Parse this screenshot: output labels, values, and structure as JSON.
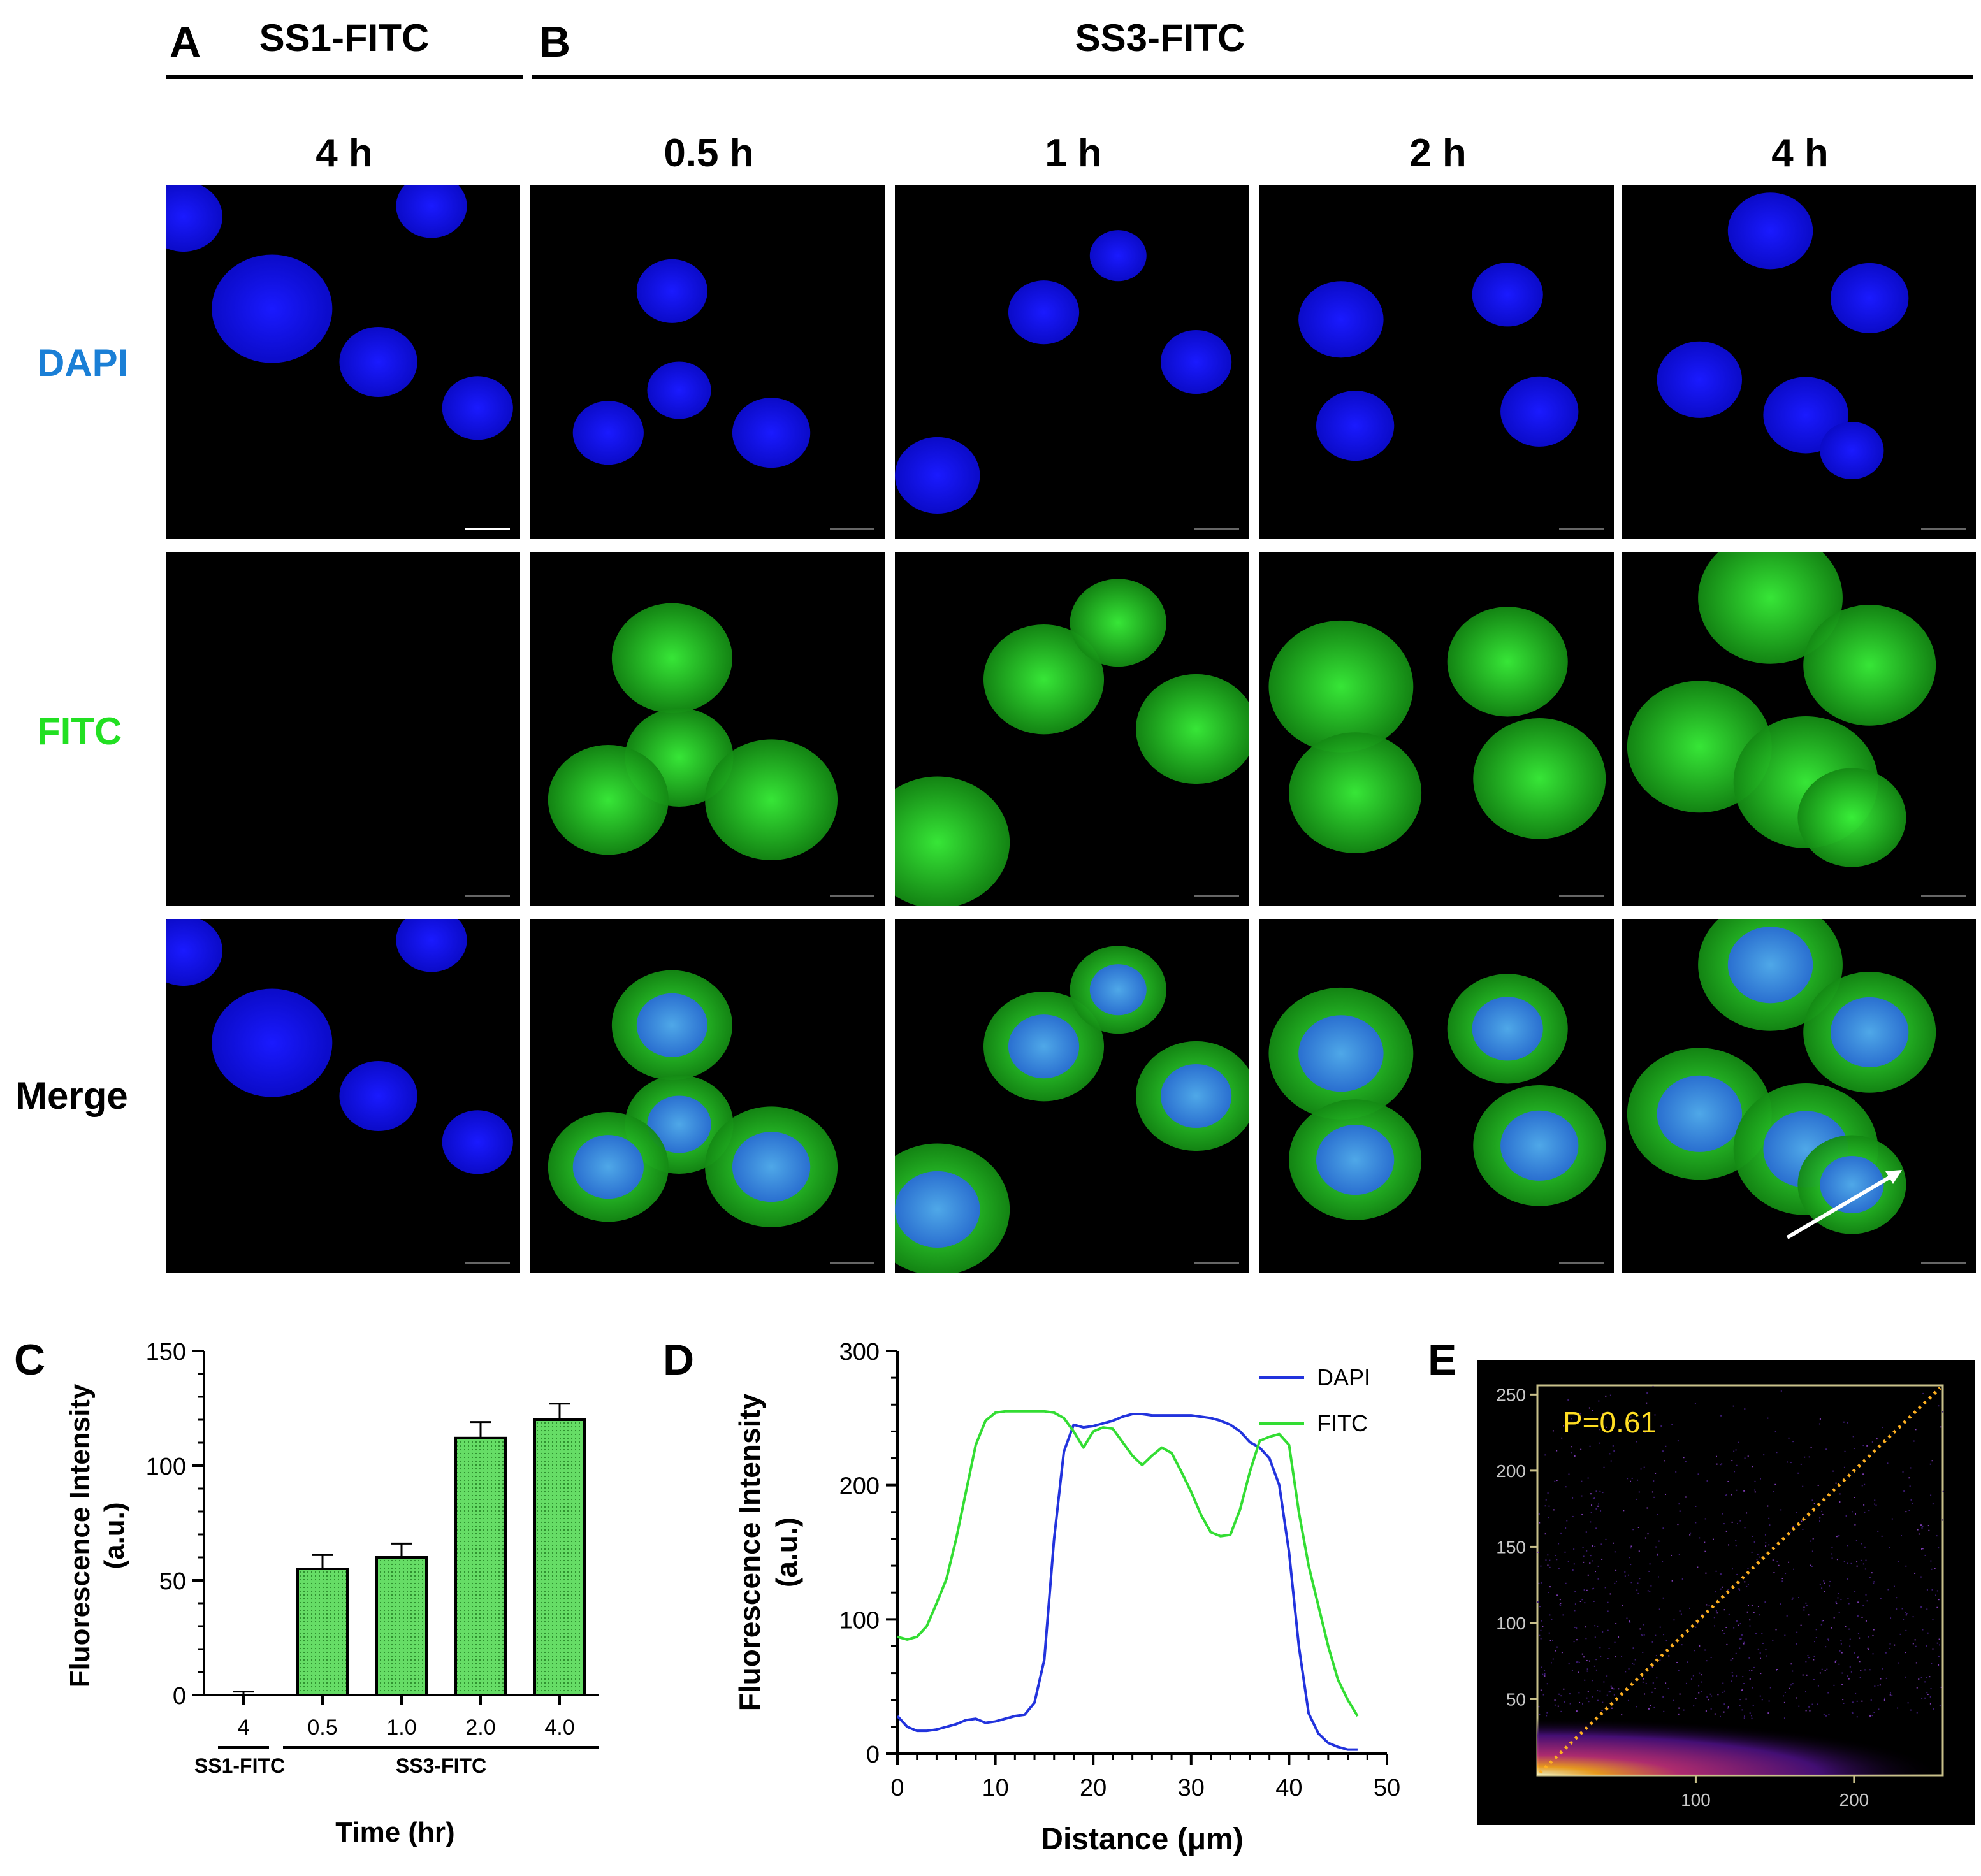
{
  "panels": {
    "A": {
      "letter": "A",
      "title": "SS1-FITC",
      "columns": [
        "4 h"
      ]
    },
    "B": {
      "letter": "B",
      "title": "SS3-FITC",
      "columns": [
        "0.5 h",
        "1 h",
        "2 h",
        "4 h"
      ]
    },
    "C": {
      "letter": "C"
    },
    "D": {
      "letter": "D"
    },
    "E": {
      "letter": "E"
    }
  },
  "rows": [
    {
      "label": "DAPI",
      "color": "#1a7fd6"
    },
    {
      "label": "FITC",
      "color": "#22e022"
    },
    {
      "label": "Merge",
      "color": "#000000"
    }
  ],
  "chart_data": [
    {
      "id": "C",
      "type": "bar",
      "categories": [
        "4",
        "0.5",
        "1.0",
        "2.0",
        "4.0"
      ],
      "values": [
        0,
        55,
        60,
        112,
        120
      ],
      "errors": [
        1.5,
        6,
        6,
        7,
        7
      ],
      "ylabel": "Fluorescence Intensity\n(a.u.)",
      "xlabel": "Time (hr)",
      "ylim": [
        0,
        150
      ],
      "yticks": [
        0,
        50,
        100,
        150
      ],
      "groups": [
        {
          "label": "SS1-FITC",
          "from": 0,
          "to": 0
        },
        {
          "label": "SS3-FITC",
          "from": 1,
          "to": 4
        }
      ],
      "bar_color": "#66dd66",
      "grid": false
    },
    {
      "id": "D",
      "type": "line",
      "xlabel": "Distance (μm)",
      "ylabel": "Fluorescence Intensity\n(a.u.)",
      "xlim": [
        0,
        50
      ],
      "ylim": [
        0,
        300
      ],
      "xticks": [
        0,
        10,
        20,
        30,
        40,
        50
      ],
      "yticks": [
        0,
        100,
        200,
        300
      ],
      "legend": "top-right",
      "grid": false,
      "series": [
        {
          "name": "DAPI",
          "color": "#2233dd",
          "x": [
            0,
            1,
            2,
            3,
            4,
            5,
            6,
            7,
            8,
            9,
            10,
            11,
            12,
            13,
            14,
            15,
            16,
            17,
            18,
            19,
            20,
            21,
            22,
            23,
            24,
            25,
            26,
            27,
            28,
            29,
            30,
            31,
            32,
            33,
            34,
            35,
            36,
            37,
            38,
            39,
            40,
            41,
            42,
            43,
            44,
            45,
            46,
            47
          ],
          "values": [
            28,
            20,
            17,
            17,
            18,
            20,
            22,
            25,
            26,
            23,
            24,
            26,
            28,
            29,
            38,
            70,
            160,
            225,
            245,
            243,
            244,
            246,
            248,
            251,
            253,
            253,
            252,
            252,
            252,
            252,
            252,
            251,
            250,
            248,
            245,
            240,
            232,
            228,
            220,
            200,
            150,
            80,
            30,
            15,
            8,
            5,
            3,
            3
          ]
        },
        {
          "name": "FITC",
          "color": "#33dd33",
          "x": [
            0,
            1,
            2,
            3,
            4,
            5,
            6,
            7,
            8,
            9,
            10,
            11,
            12,
            13,
            14,
            15,
            16,
            17,
            18,
            19,
            20,
            21,
            22,
            23,
            24,
            25,
            26,
            27,
            28,
            29,
            30,
            31,
            32,
            33,
            34,
            35,
            36,
            37,
            38,
            39,
            40,
            41,
            42,
            43,
            44,
            45,
            46,
            47
          ],
          "values": [
            87,
            85,
            87,
            95,
            112,
            130,
            160,
            195,
            230,
            248,
            254,
            255,
            255,
            255,
            255,
            255,
            254,
            250,
            240,
            228,
            240,
            243,
            242,
            232,
            222,
            215,
            222,
            228,
            224,
            210,
            195,
            178,
            165,
            162,
            163,
            182,
            210,
            233,
            236,
            238,
            230,
            180,
            140,
            110,
            80,
            55,
            40,
            28
          ]
        }
      ]
    }
  ],
  "panel_e": {
    "annotation": "P=0.61",
    "annotation_color": "#ffdd22",
    "x_ticks": [
      "100",
      "200"
    ],
    "y_ticks": [
      "50",
      "100",
      "150",
      "200",
      "250"
    ]
  }
}
